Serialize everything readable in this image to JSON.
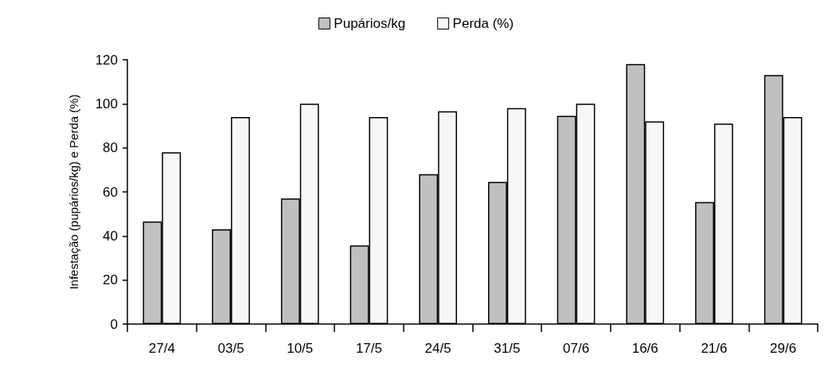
{
  "chart_data": {
    "type": "bar",
    "ylabel": "Infestação (pupários/kg) e Perda (%)",
    "categories": [
      "27/4",
      "03/5",
      "10/5",
      "17/5",
      "24/5",
      "31/5",
      "07/6",
      "16/6",
      "21/6",
      "29/6"
    ],
    "series": [
      {
        "name": "Pupários/kg",
        "color": "#c0c0c0",
        "values": [
          46.5,
          43,
          57,
          35.7,
          68,
          64.5,
          94.5,
          118,
          55.4,
          113
        ]
      },
      {
        "name": "Perda (%)",
        "color": "#f7f7f7",
        "values": [
          78,
          94,
          100,
          94,
          96.6,
          98,
          100,
          92,
          91,
          94
        ]
      }
    ],
    "ylim": [
      0,
      120
    ],
    "yticks": [
      0,
      20,
      40,
      60,
      80,
      100,
      120
    ],
    "grid": false,
    "legend": "top"
  }
}
